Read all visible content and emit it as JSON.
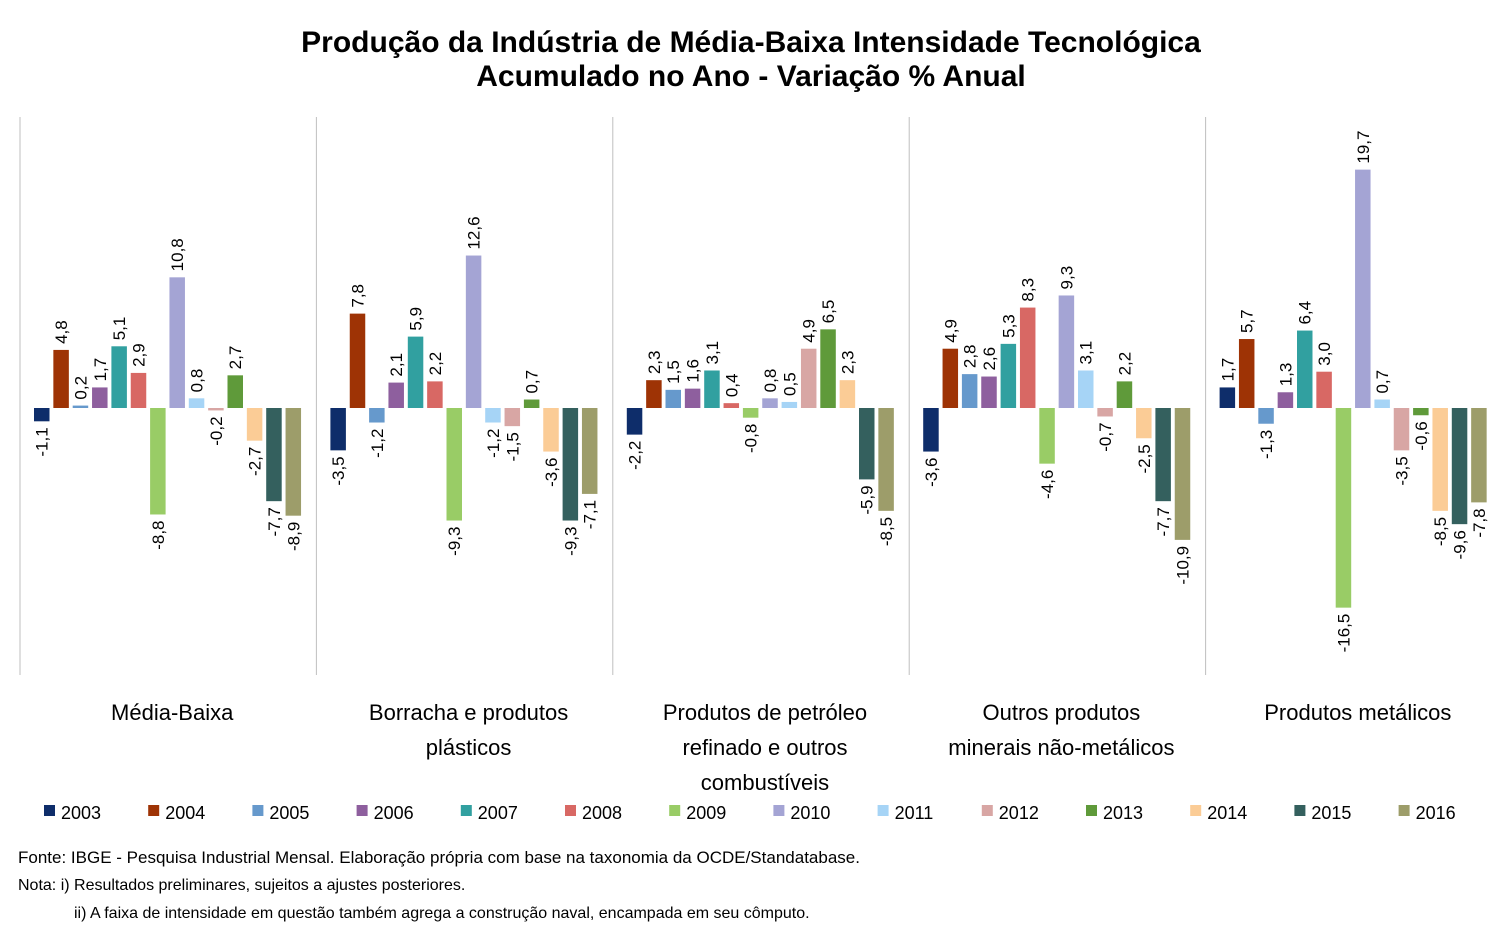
{
  "chart_data": {
    "type": "bar",
    "title": [
      "Produção da Indústria de Média-Baixa Intensidade Tecnológica",
      "Acumulado no Ano - Variação % Anual"
    ],
    "categories": [
      [
        "Média-Baixa"
      ],
      [
        "Borracha e produtos",
        "plásticos"
      ],
      [
        "Produtos de petróleo",
        "refinado e outros",
        "combustíveis"
      ],
      [
        "Outros produtos",
        "minerais não-metálicos"
      ],
      [
        "Produtos metálicos"
      ]
    ],
    "ylim": [
      -21.8,
      24.0
    ],
    "grid": false,
    "legend_position": "bottom",
    "series": [
      {
        "name": "2003",
        "color": "#0e2d6a",
        "values": [
          -1.1,
          -3.5,
          -2.2,
          -3.6,
          1.7
        ],
        "labels": [
          "-1,1",
          "-3,5",
          "-2,2",
          "-3,6",
          "1,7"
        ]
      },
      {
        "name": "2004",
        "color": "#9e3305",
        "values": [
          4.8,
          7.8,
          2.3,
          4.9,
          5.7
        ],
        "labels": [
          "4,8",
          "7,8",
          "2,3",
          "4,9",
          "5,7"
        ]
      },
      {
        "name": "2005",
        "color": "#6699cc",
        "values": [
          0.2,
          -1.2,
          1.5,
          2.8,
          -1.3
        ],
        "labels": [
          "0,2",
          "-1,2",
          "1,5",
          "2,8",
          "-1,3"
        ]
      },
      {
        "name": "2006",
        "color": "#8e5f9e",
        "values": [
          1.7,
          2.1,
          1.6,
          2.6,
          1.3
        ],
        "labels": [
          "1,7",
          "2,1",
          "1,6",
          "2,6",
          "1,3"
        ]
      },
      {
        "name": "2007",
        "color": "#31a0a0",
        "values": [
          5.1,
          5.9,
          3.1,
          5.3,
          6.4
        ],
        "labels": [
          "5,1",
          "5,9",
          "3,1",
          "5,3",
          "6,4"
        ]
      },
      {
        "name": "2008",
        "color": "#d86864",
        "values": [
          2.9,
          2.2,
          0.4,
          8.3,
          3.0
        ],
        "labels": [
          "2,9",
          "2,2",
          "0,4",
          "8,3",
          "3,0"
        ]
      },
      {
        "name": "2009",
        "color": "#99cc66",
        "values": [
          -8.8,
          -9.3,
          -0.8,
          -4.6,
          -16.5
        ],
        "labels": [
          "-8,8",
          "-9,3",
          "-0,8",
          "-4,6",
          "-16,5"
        ]
      },
      {
        "name": "2010",
        "color": "#a4a4d4",
        "values": [
          10.8,
          12.6,
          0.8,
          9.3,
          19.7
        ],
        "labels": [
          "10,8",
          "12,6",
          "0,8",
          "9,3",
          "19,7"
        ]
      },
      {
        "name": "2011",
        "color": "#a6d4f6",
        "values": [
          0.8,
          -1.2,
          0.5,
          3.1,
          0.7
        ],
        "labels": [
          "0,8",
          "-1,2",
          "0,5",
          "3,1",
          "0,7"
        ]
      },
      {
        "name": "2012",
        "color": "#d8a6a4",
        "values": [
          -0.2,
          -1.5,
          4.9,
          -0.7,
          -3.5
        ],
        "labels": [
          "-0,2",
          "-1,5",
          "4,9",
          "-0,7",
          "-3,5"
        ]
      },
      {
        "name": "2013",
        "color": "#5f9a3a",
        "values": [
          2.7,
          0.7,
          6.5,
          2.2,
          -0.6
        ],
        "labels": [
          "2,7",
          "0,7",
          "6,5",
          "2,2",
          "-0,6"
        ]
      },
      {
        "name": "2014",
        "color": "#fbcc96",
        "values": [
          -2.7,
          -3.6,
          2.3,
          -2.5,
          -8.5
        ],
        "labels": [
          "-2,7",
          "-3,6",
          "2,3",
          "-2,5",
          "-8,5"
        ]
      },
      {
        "name": "2015",
        "color": "#34605e",
        "values": [
          -7.7,
          -9.3,
          -5.9,
          -7.7,
          -9.6
        ],
        "labels": [
          "-7,7",
          "-9,3",
          "-5,9",
          "-7,7",
          "-9,6"
        ]
      },
      {
        "name": "2016",
        "color": "#9d9d6a",
        "values": [
          -8.9,
          -7.1,
          -8.5,
          -10.9,
          -7.8
        ],
        "labels": [
          "-8,9",
          "-7,1",
          "-8,5",
          "-10,9",
          "-7,8"
        ]
      }
    ]
  },
  "footnotes": {
    "source": "Fonte:  IBGE - Pesquisa Industrial Mensal. Elaboração própria com base na taxonomia da OCDE/Standatabase.",
    "note1": "Nota: i) Resultados preliminares, sujeitos a ajustes posteriores.",
    "note2": "ii) A faixa de intensidade em questão também agrega a construção naval, encampada em seu cômputo."
  }
}
